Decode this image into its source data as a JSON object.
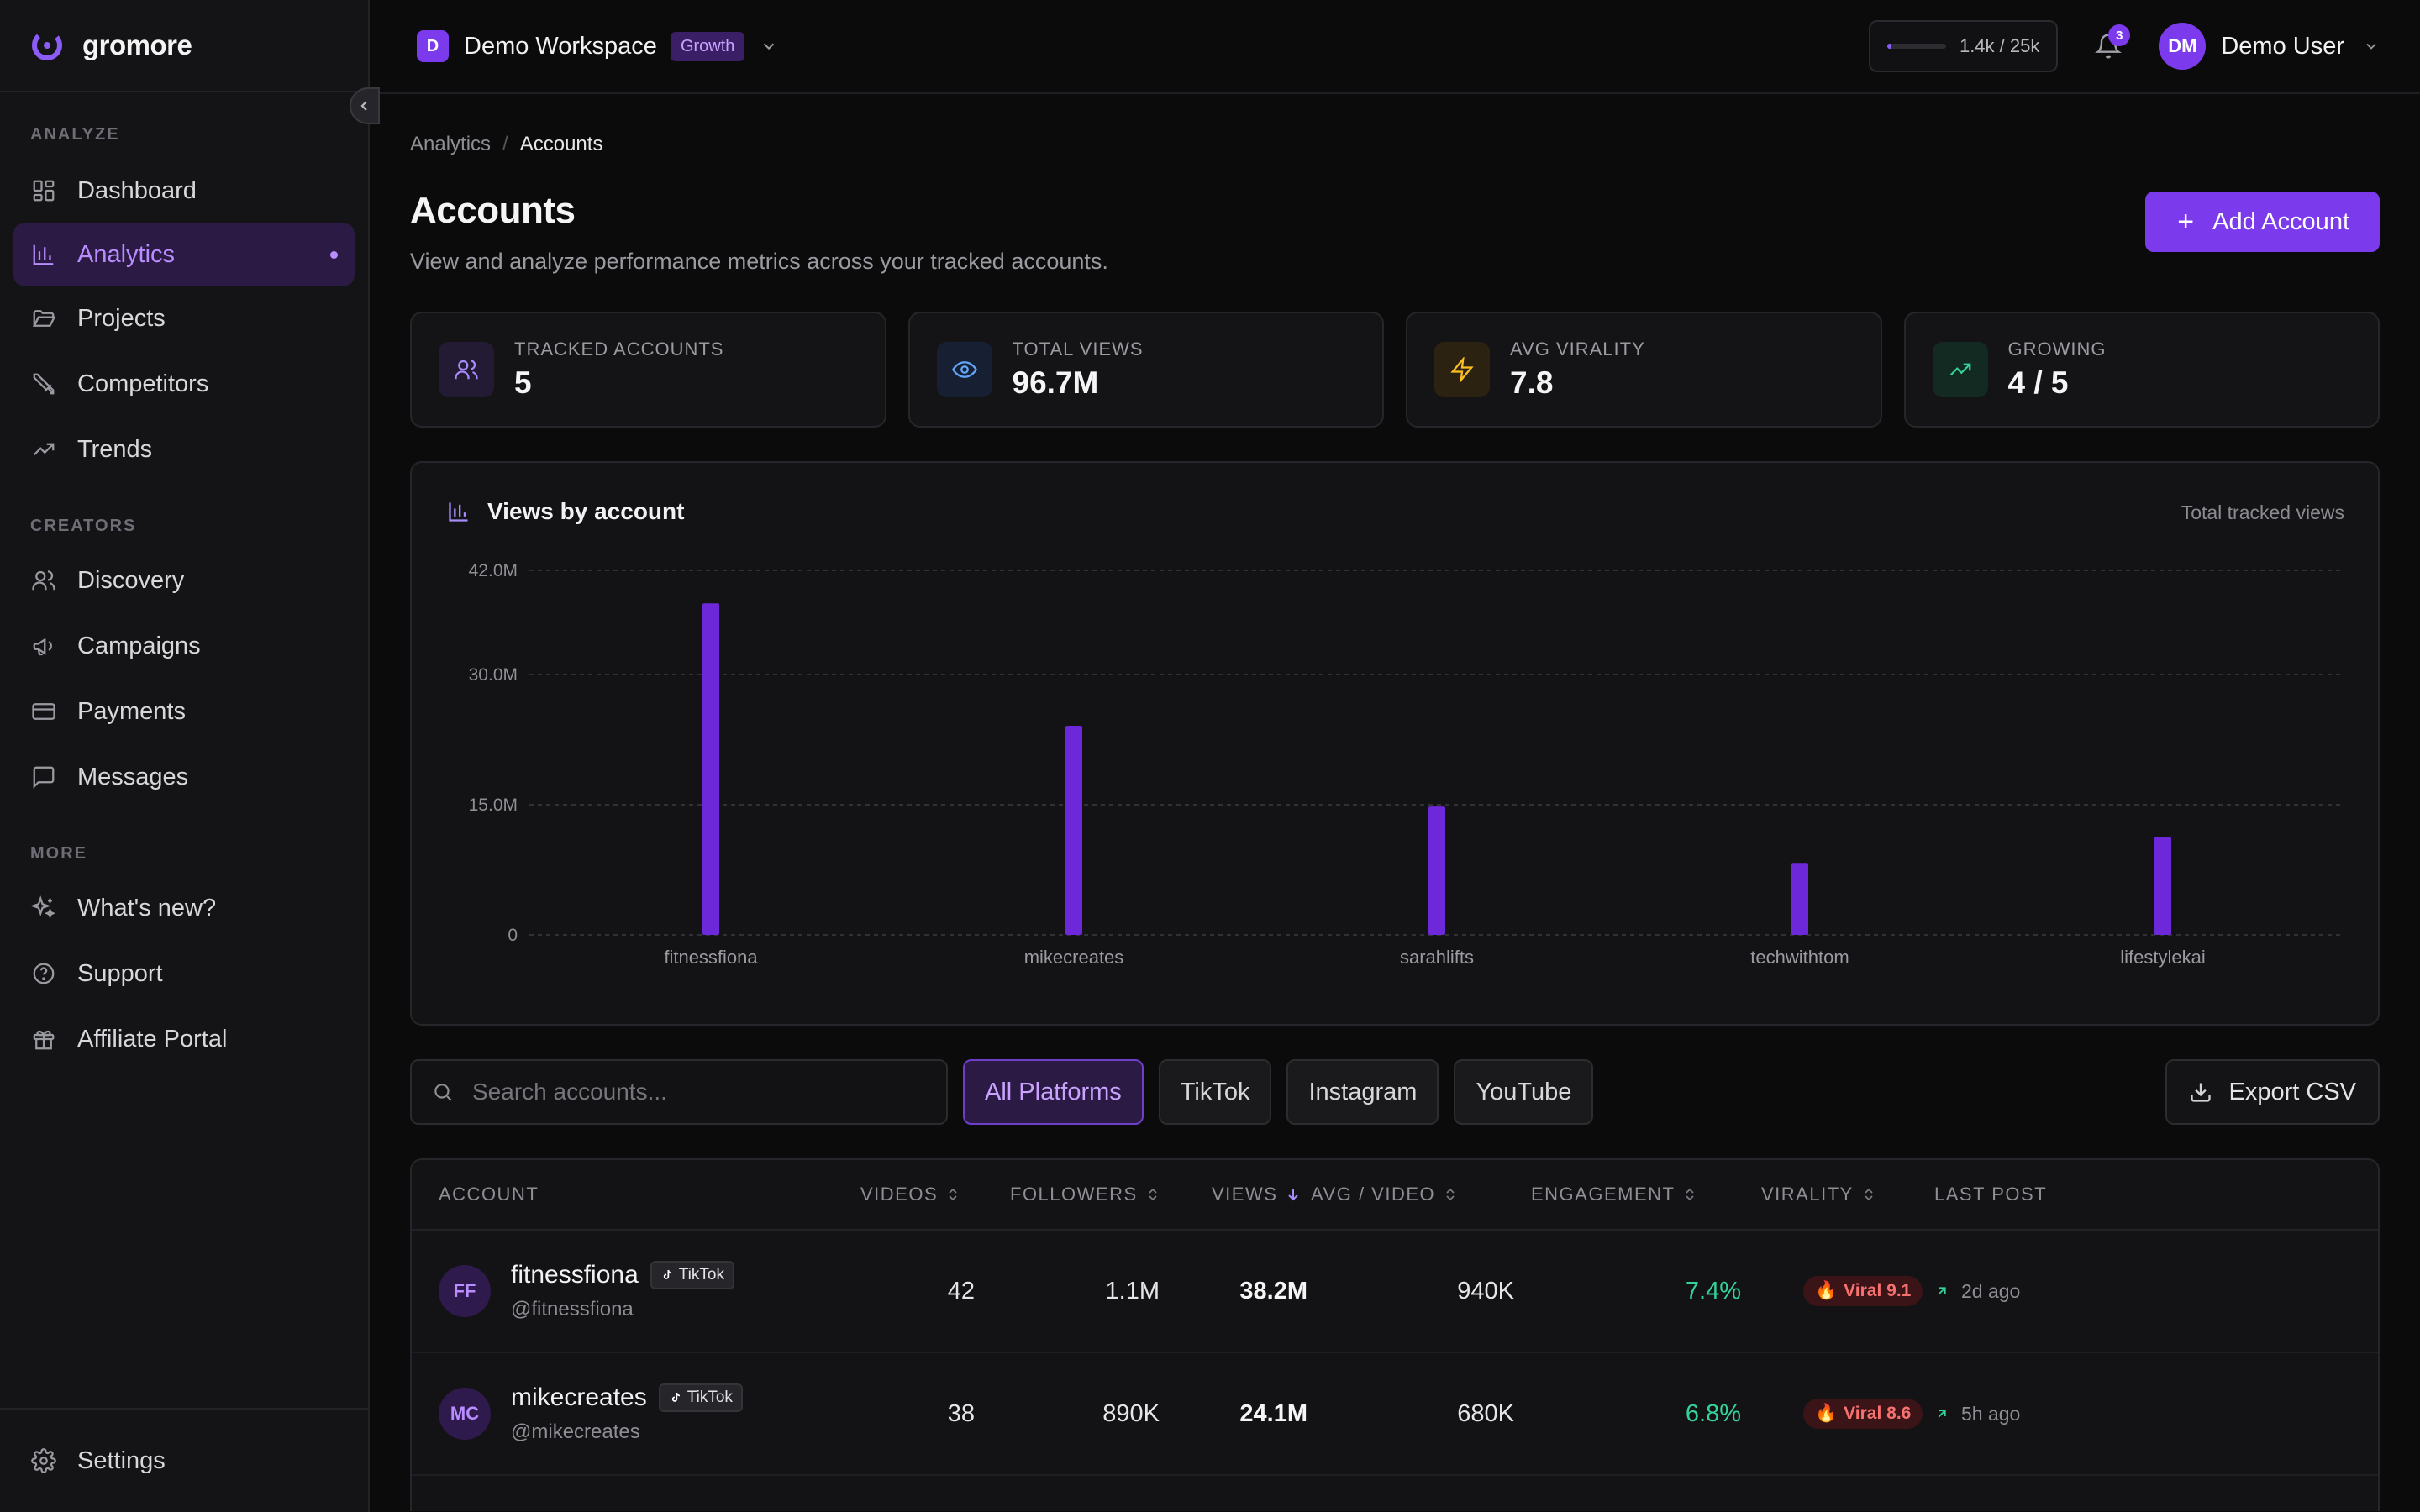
{
  "brand": {
    "name": "gromore"
  },
  "sidebar": {
    "sections": [
      {
        "label": "ANALYZE",
        "items": [
          {
            "label": "Dashboard",
            "icon": "dashboard-icon"
          },
          {
            "label": "Analytics",
            "icon": "analytics-icon",
            "active": true
          },
          {
            "label": "Projects",
            "icon": "folder-icon"
          },
          {
            "label": "Competitors",
            "icon": "swords-icon"
          },
          {
            "label": "Trends",
            "icon": "trending-icon"
          }
        ]
      },
      {
        "label": "CREATORS",
        "items": [
          {
            "label": "Discovery",
            "icon": "users-icon"
          },
          {
            "label": "Campaigns",
            "icon": "megaphone-icon"
          },
          {
            "label": "Payments",
            "icon": "card-icon"
          },
          {
            "label": "Messages",
            "icon": "message-icon"
          }
        ]
      },
      {
        "label": "MORE",
        "items": [
          {
            "label": "What's new?",
            "icon": "sparkles-icon"
          },
          {
            "label": "Support",
            "icon": "help-icon"
          },
          {
            "label": "Affiliate Portal",
            "icon": "gift-icon"
          }
        ]
      }
    ],
    "settings_label": "Settings"
  },
  "topbar": {
    "workspace_initial": "D",
    "workspace_name": "Demo Workspace",
    "plan_badge": "Growth",
    "usage_text": "1.4k / 25k",
    "usage_fraction": 0.056,
    "notification_count": "3",
    "user_initials": "DM",
    "user_name": "Demo User"
  },
  "breadcrumb": {
    "parent": "Analytics",
    "separator": "/",
    "current": "Accounts"
  },
  "page": {
    "title": "Accounts",
    "subtitle": "View and analyze performance metrics across your tracked accounts.",
    "add_button": "Add Account"
  },
  "stats": [
    {
      "label": "TRACKED ACCOUNTS",
      "value": "5",
      "icon": "users-icon",
      "color": "#a78bfa",
      "bg": "#231a33"
    },
    {
      "label": "TOTAL VIEWS",
      "value": "96.7M",
      "icon": "eye-icon",
      "color": "#60a5fa",
      "bg": "#172033"
    },
    {
      "label": "AVG VIRALITY",
      "value": "7.8",
      "icon": "zap-icon",
      "color": "#fbbf24",
      "bg": "#2c2212"
    },
    {
      "label": "GROWING",
      "value": "4 / 5",
      "icon": "trending-up-icon",
      "color": "#34d399",
      "bg": "#132a22"
    }
  ],
  "chart_card": {
    "title": "Views by account",
    "subtitle": "Total tracked views"
  },
  "chart_data": {
    "type": "bar",
    "title": "Views by account",
    "categories": [
      "fitnessfiona",
      "mikecreates",
      "sarahlifts",
      "techwithtom",
      "lifestylekai"
    ],
    "values": [
      38.2,
      24.1,
      14.8,
      8.3,
      11.3
    ],
    "unit": "M",
    "ylim": [
      0,
      42
    ],
    "yticks": [
      0,
      15,
      30,
      42
    ],
    "ytick_labels": [
      "0",
      "15.0M",
      "30.0M",
      "42.0M"
    ],
    "grid": true,
    "bar_color": "#6d28d9"
  },
  "filters": {
    "search_placeholder": "Search accounts...",
    "platforms": [
      {
        "label": "All Platforms",
        "active": true
      },
      {
        "label": "TikTok"
      },
      {
        "label": "Instagram"
      },
      {
        "label": "YouTube"
      }
    ],
    "export_label": "Export CSV"
  },
  "table": {
    "columns": {
      "account": "ACCOUNT",
      "videos": "VIDEOS",
      "followers": "FOLLOWERS",
      "views": "VIEWS",
      "avg_video": "AVG / VIDEO",
      "engagement": "ENGAGEMENT",
      "virality": "VIRALITY",
      "last_post": "LAST POST"
    },
    "rows": [
      {
        "initials": "FF",
        "name": "fitnessfiona",
        "platform": "TikTok",
        "handle": "@fitnessfiona",
        "videos": "42",
        "followers": "1.1M",
        "views": "38.2M",
        "avg": "940K",
        "engagement": "7.4%",
        "viral_label": "Viral",
        "viral_score": "9.1",
        "last_post": "2d ago"
      },
      {
        "initials": "MC",
        "name": "mikecreates",
        "platform": "TikTok",
        "handle": "@mikecreates",
        "videos": "38",
        "followers": "890K",
        "views": "24.1M",
        "avg": "680K",
        "engagement": "6.8%",
        "viral_label": "Viral",
        "viral_score": "8.6",
        "last_post": "5h ago"
      }
    ]
  }
}
